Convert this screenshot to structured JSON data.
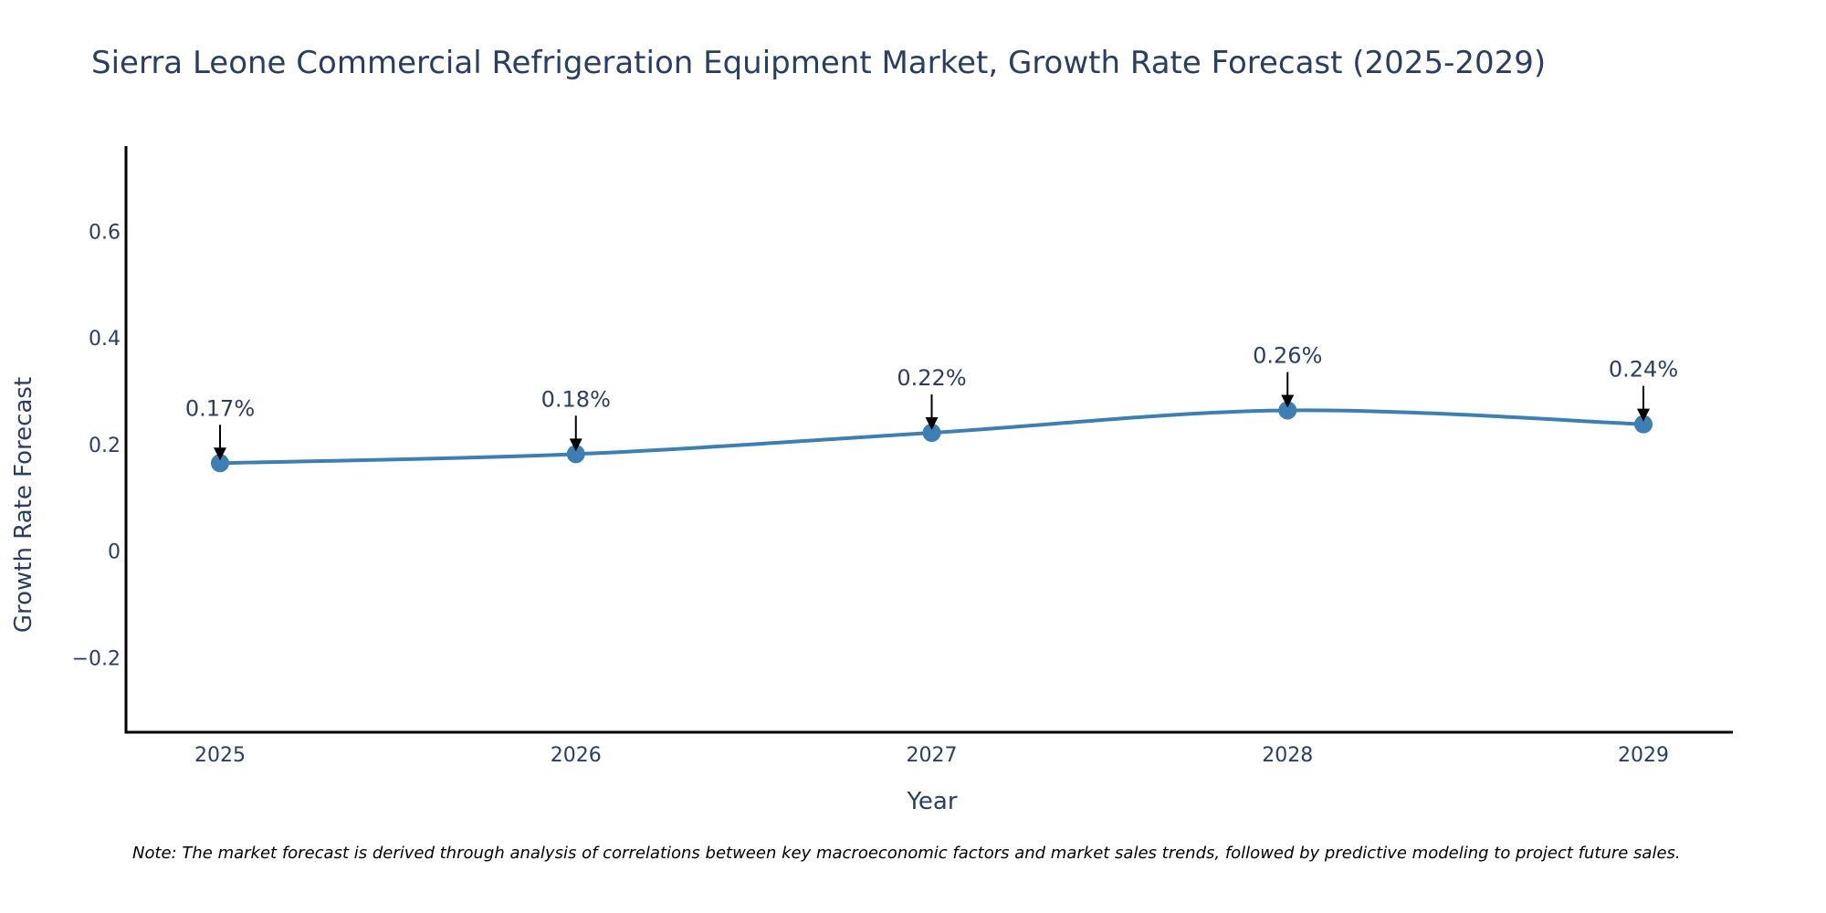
{
  "colors": {
    "line": "#3d7fb2",
    "text": "#2a3f5f",
    "axis": "#000000",
    "arrow": "#000000"
  },
  "chart_data": {
    "type": "line",
    "title": "Sierra Leone Commercial Refrigeration Equipment Market, Growth Rate Forecast (2025-2029)",
    "xlabel": "Year",
    "ylabel": "Growth Rate Forecast",
    "categories": [
      "2025",
      "2026",
      "2027",
      "2028",
      "2029"
    ],
    "series": [
      {
        "name": "Growth Rate Forecast",
        "values": [
          0.165,
          0.182,
          0.222,
          0.264,
          0.238
        ]
      }
    ],
    "data_labels": [
      "0.17%",
      "0.18%",
      "0.22%",
      "0.26%",
      "0.24%"
    ],
    "yticks": [
      -0.2,
      0,
      0.2,
      0.4,
      0.6
    ],
    "ytick_labels": [
      "−0.2",
      "0",
      "0.2",
      "0.4",
      "0.6"
    ],
    "ylim": [
      -0.34,
      0.76
    ],
    "grid": false,
    "note": "Note: The market forecast is derived through analysis of correlations between key macroeconomic factors and market sales trends, followed by predictive modeling to project future sales."
  }
}
